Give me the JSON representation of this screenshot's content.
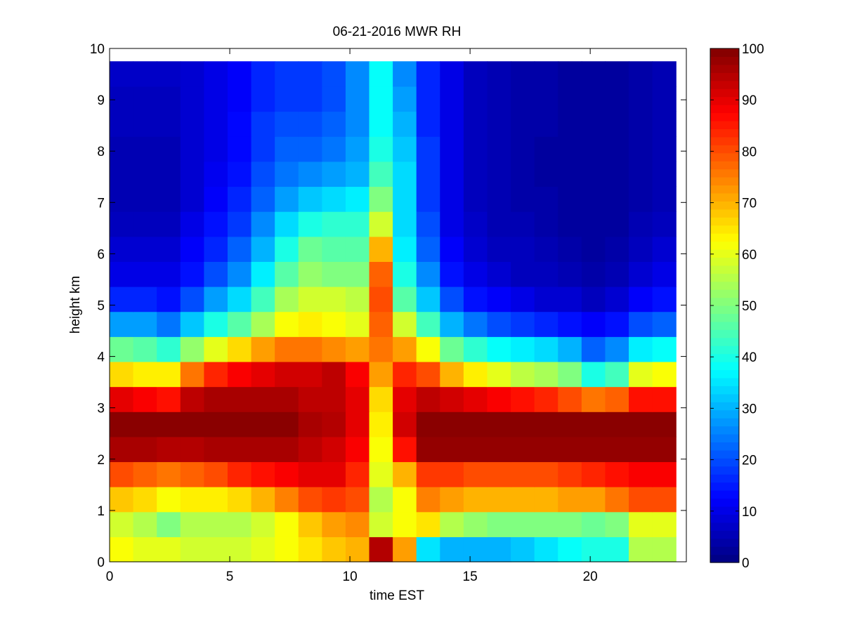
{
  "chart_data": {
    "type": "heatmap",
    "title": "06-21-2016 MWR RH",
    "xlabel": "time EST",
    "ylabel": "height km",
    "xlim": [
      0,
      24
    ],
    "ylim": [
      0,
      10
    ],
    "x_ticks": [
      0,
      5,
      10,
      15,
      20
    ],
    "y_ticks": [
      0,
      1,
      2,
      3,
      4,
      5,
      6,
      7,
      8,
      9,
      10
    ],
    "colorbar": {
      "colormap": "jet",
      "range": [
        0,
        100
      ],
      "ticks": [
        0,
        10,
        20,
        30,
        40,
        50,
        60,
        70,
        80,
        90,
        100
      ]
    },
    "x": [
      0,
      1,
      2,
      3,
      4,
      5,
      6,
      7,
      8,
      9,
      10,
      11,
      12,
      13,
      14,
      15,
      16,
      17,
      18,
      19,
      20,
      21,
      22,
      23
    ],
    "y": [
      0.1,
      0.5,
      1.0,
      1.5,
      2.0,
      2.5,
      3.0,
      3.5,
      4.0,
      4.5,
      5.0,
      5.5,
      6.0,
      6.5,
      7.0,
      7.5,
      8.0,
      8.5,
      9.0,
      9.5
    ],
    "z": [
      [
        62,
        60,
        60,
        58,
        58,
        58,
        60,
        62,
        65,
        68,
        70,
        95,
        72,
        35,
        30,
        30,
        30,
        32,
        35,
        38,
        40,
        40,
        55,
        55
      ],
      [
        58,
        55,
        50,
        55,
        55,
        55,
        58,
        62,
        68,
        72,
        74,
        58,
        62,
        65,
        55,
        52,
        50,
        50,
        50,
        50,
        48,
        50,
        60,
        60
      ],
      [
        68,
        66,
        62,
        64,
        64,
        66,
        70,
        75,
        80,
        82,
        80,
        55,
        62,
        75,
        72,
        70,
        70,
        70,
        70,
        72,
        72,
        76,
        80,
        80
      ],
      [
        80,
        78,
        76,
        78,
        80,
        84,
        86,
        88,
        90,
        90,
        84,
        60,
        70,
        82,
        82,
        80,
        80,
        80,
        80,
        82,
        84,
        86,
        88,
        88
      ],
      [
        96,
        96,
        95,
        95,
        96,
        96,
        96,
        96,
        94,
        92,
        88,
        62,
        86,
        98,
        98,
        98,
        98,
        98,
        98,
        98,
        98,
        98,
        98,
        98
      ],
      [
        99,
        99,
        99,
        99,
        99,
        99,
        99,
        99,
        96,
        95,
        90,
        64,
        92,
        99,
        99,
        99,
        99,
        99,
        99,
        99,
        99,
        99,
        99,
        99
      ],
      [
        90,
        88,
        86,
        94,
        96,
        96,
        96,
        96,
        94,
        94,
        90,
        66,
        90,
        94,
        92,
        90,
        88,
        86,
        84,
        80,
        76,
        78,
        86,
        86
      ],
      [
        66,
        64,
        64,
        76,
        84,
        88,
        90,
        92,
        92,
        94,
        88,
        72,
        84,
        80,
        70,
        64,
        60,
        56,
        54,
        50,
        40,
        44,
        60,
        62
      ],
      [
        48,
        46,
        42,
        52,
        60,
        66,
        72,
        76,
        76,
        74,
        72,
        76,
        72,
        62,
        48,
        42,
        38,
        36,
        34,
        30,
        22,
        26,
        36,
        38
      ],
      [
        28,
        28,
        24,
        32,
        40,
        46,
        54,
        62,
        64,
        62,
        60,
        78,
        58,
        44,
        30,
        24,
        20,
        18,
        16,
        14,
        12,
        14,
        20,
        22
      ],
      [
        16,
        16,
        14,
        20,
        28,
        34,
        44,
        54,
        58,
        58,
        56,
        80,
        46,
        32,
        20,
        14,
        12,
        10,
        8,
        8,
        6,
        8,
        12,
        14
      ],
      [
        10,
        10,
        10,
        14,
        20,
        26,
        36,
        46,
        52,
        50,
        50,
        78,
        40,
        26,
        14,
        10,
        8,
        6,
        6,
        5,
        4,
        5,
        8,
        10
      ],
      [
        8,
        8,
        8,
        12,
        16,
        22,
        30,
        40,
        48,
        46,
        46,
        70,
        36,
        22,
        12,
        8,
        6,
        6,
        5,
        4,
        3,
        4,
        6,
        8
      ],
      [
        6,
        6,
        6,
        10,
        14,
        18,
        26,
        34,
        40,
        42,
        42,
        58,
        34,
        20,
        10,
        7,
        5,
        5,
        4,
        3,
        3,
        3,
        5,
        6
      ],
      [
        5,
        5,
        5,
        8,
        12,
        16,
        22,
        28,
        32,
        34,
        36,
        50,
        34,
        18,
        10,
        6,
        5,
        4,
        4,
        3,
        3,
        3,
        4,
        5
      ],
      [
        5,
        5,
        5,
        8,
        11,
        14,
        20,
        24,
        26,
        28,
        30,
        44,
        34,
        18,
        10,
        6,
        5,
        4,
        3,
        3,
        3,
        3,
        4,
        5
      ],
      [
        5,
        5,
        5,
        8,
        10,
        13,
        18,
        22,
        22,
        24,
        28,
        40,
        32,
        18,
        10,
        6,
        5,
        4,
        3,
        3,
        3,
        3,
        4,
        5
      ],
      [
        6,
        6,
        6,
        8,
        10,
        13,
        18,
        20,
        20,
        22,
        26,
        38,
        30,
        16,
        10,
        6,
        5,
        4,
        4,
        3,
        3,
        3,
        4,
        5
      ],
      [
        6,
        6,
        6,
        8,
        10,
        12,
        16,
        18,
        18,
        20,
        26,
        38,
        28,
        16,
        10,
        6,
        5,
        4,
        4,
        3,
        3,
        3,
        4,
        5
      ],
      [
        7,
        7,
        7,
        8,
        10,
        12,
        16,
        18,
        18,
        20,
        26,
        38,
        26,
        16,
        10,
        6,
        5,
        4,
        4,
        3,
        3,
        3,
        4,
        5
      ]
    ]
  }
}
